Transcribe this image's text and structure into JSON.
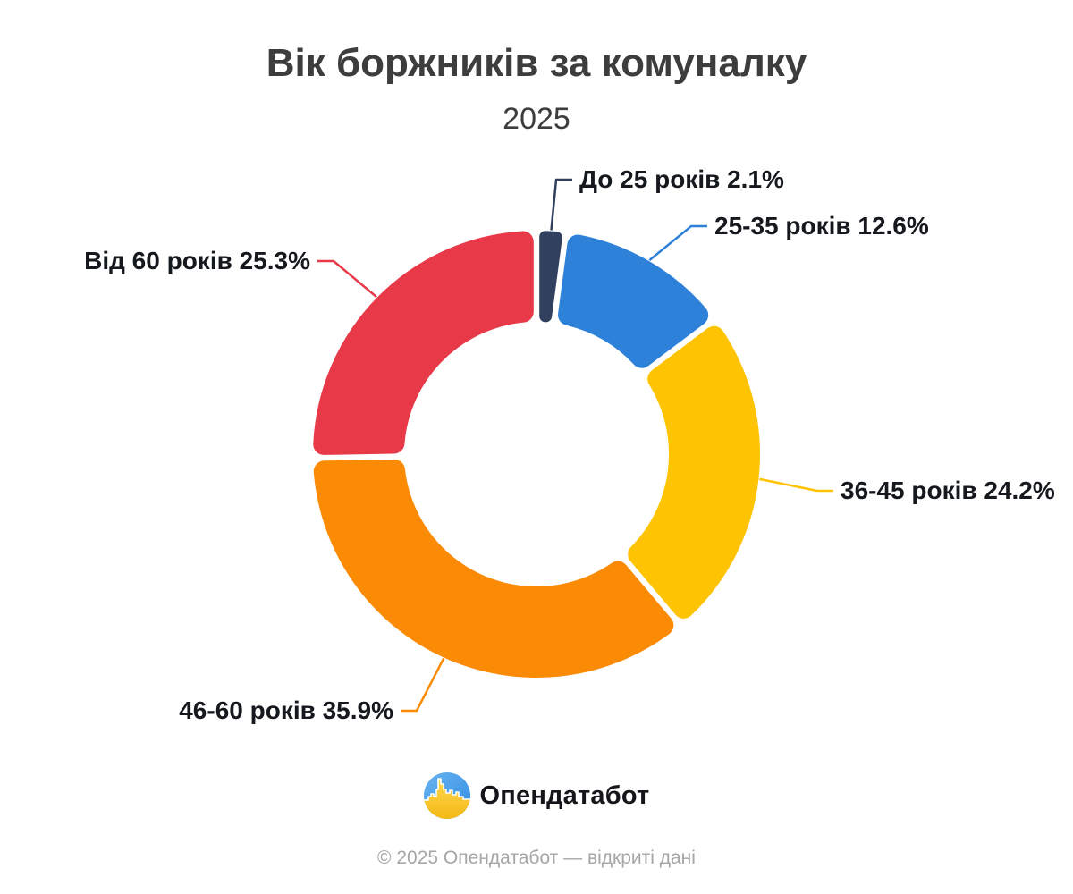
{
  "title": "Вік боржників за комуналку",
  "subtitle": "2025",
  "chart_data": {
    "type": "pie",
    "subtype": "donut",
    "start_angle_deg": 0,
    "direction": "clockwise",
    "legend_position": "callout-labels",
    "slices": [
      {
        "id": "under-25",
        "label": "До 25 років",
        "value": 2.1,
        "display": "До 25 років 2.1%",
        "color": "#31405f"
      },
      {
        "id": "25-35",
        "label": "25-35 років",
        "value": 12.6,
        "display": "25-35 років 12.6%",
        "color": "#2e81d9"
      },
      {
        "id": "36-45",
        "label": "36-45 років",
        "value": 24.2,
        "display": "36-45 років 24.2%",
        "color": "#fec303"
      },
      {
        "id": "46-60",
        "label": "46-60 років",
        "value": 35.9,
        "display": "46-60 років 35.9%",
        "color": "#fb8a04"
      },
      {
        "id": "over-60",
        "label": "Від 60 років",
        "value": 25.3,
        "display": "Від 60 років 25.3%",
        "color": "#e73948"
      }
    ]
  },
  "branding": {
    "logo_text": "Опендатабот",
    "logo_icon": "opendatabot-skyline-circle",
    "logo_blue": "#3f8fe0",
    "logo_yellow": "#f6bd16"
  },
  "footer": "© 2025 Опендатабот — відкриті дані"
}
